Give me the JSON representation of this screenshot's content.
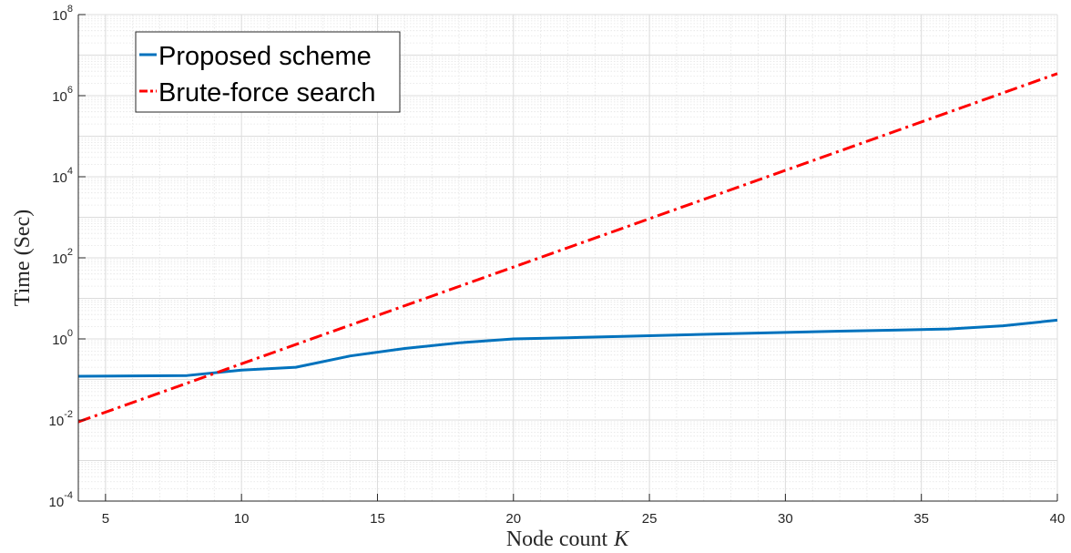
{
  "chart_data": {
    "type": "line",
    "title": "",
    "xlabel": "Node count",
    "xlabel_var": "K",
    "ylabel": "Time (Sec)",
    "xlim": [
      4,
      40
    ],
    "ylim": [
      0.0001,
      100000000
    ],
    "yscale": "log",
    "grid": true,
    "minor_grid": true,
    "legend_position": "top-left",
    "x_ticks": [
      5,
      10,
      15,
      20,
      25,
      30,
      35,
      40
    ],
    "x_tick_labels": [
      "5",
      "10",
      "15",
      "20",
      "25",
      "30",
      "35",
      "40"
    ],
    "y_ticks": [
      0.0001,
      0.01,
      1,
      100,
      10000,
      1000000,
      100000000
    ],
    "y_tick_labels": [
      {
        "base": "10",
        "exp": "-4"
      },
      {
        "base": "10",
        "exp": "-2"
      },
      {
        "base": "10",
        "exp": "0"
      },
      {
        "base": "10",
        "exp": "2"
      },
      {
        "base": "10",
        "exp": "4"
      },
      {
        "base": "10",
        "exp": "6"
      },
      {
        "base": "10",
        "exp": "8"
      }
    ],
    "series": [
      {
        "name": "Proposed scheme",
        "color": "#0072BD",
        "line_style": "solid",
        "x": [
          4,
          6,
          8,
          10,
          12,
          14,
          16,
          18,
          20,
          22,
          24,
          26,
          28,
          30,
          32,
          34,
          36,
          38,
          40
        ],
        "y": [
          0.12,
          0.122,
          0.125,
          0.17,
          0.2,
          0.38,
          0.58,
          0.8,
          1.0,
          1.07,
          1.15,
          1.25,
          1.35,
          1.45,
          1.55,
          1.65,
          1.75,
          2.1,
          2.9
        ]
      },
      {
        "name": "Brute-force search",
        "color": "#FF0000",
        "line_style": "dash-dot",
        "x": [
          4,
          40
        ],
        "y": [
          0.009,
          3500000
        ]
      }
    ]
  }
}
